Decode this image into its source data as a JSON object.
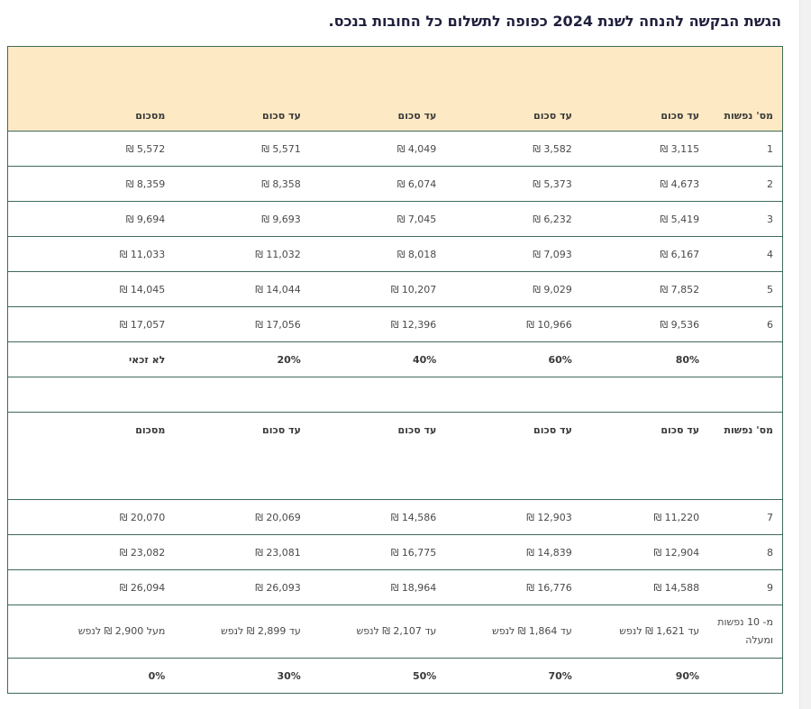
{
  "title": "הגשת הבקשה להנחה לשנת 2024 כפופה לתשלום כל החובות בנכס.",
  "table1": {
    "headers": [
      "מס' נפשות",
      "עד סכום",
      "עד סכום",
      "עד סכום",
      "עד סכום",
      "מסכום"
    ],
    "rows": [
      [
        "1",
        "3,115 ₪",
        "3,582 ₪",
        "4,049 ₪",
        "5,571 ₪",
        "5,572 ₪"
      ],
      [
        "2",
        "4,673 ₪",
        "5,373 ₪",
        "6,074 ₪",
        "8,358 ₪",
        "8,359 ₪"
      ],
      [
        "3",
        "5,419 ₪",
        "6,232 ₪",
        "7,045 ₪",
        "9,693 ₪",
        "9,694 ₪"
      ],
      [
        "4",
        "6,167 ₪",
        "7,093 ₪",
        "8,018 ₪",
        "11,032 ₪",
        "11,033 ₪"
      ],
      [
        "5",
        "7,852 ₪",
        "9,029 ₪",
        "10,207 ₪",
        "14,044 ₪",
        "14,045 ₪"
      ],
      [
        "6",
        "9,536 ₪",
        "10,966 ₪",
        "12,396 ₪",
        "17,056 ₪",
        "17,057 ₪"
      ]
    ],
    "percentages": [
      "",
      "80%",
      "60%",
      "40%",
      "20%",
      "לא זכאי"
    ]
  },
  "table2": {
    "headers": [
      "מס' נפשות",
      "עד סכום",
      "עד סכום",
      "עד סכום",
      "עד סכום",
      "מסכום"
    ],
    "rows": [
      [
        "7",
        "11,220 ₪",
        "12,903 ₪",
        "14,586 ₪",
        "20,069 ₪",
        "20,070 ₪"
      ],
      [
        "8",
        "12,904 ₪",
        "14,839 ₪",
        "16,775 ₪",
        "23,081 ₪",
        "23,082 ₪"
      ],
      [
        "9",
        "14,588 ₪",
        "16,776 ₪",
        "18,964 ₪",
        "26,093 ₪",
        "26,094 ₪"
      ],
      [
        "מ- 10 נפשות ומעלה",
        "עד 1,621 ₪ לנפש",
        "עד 1,864 ₪ לנפש",
        "עד 2,107 ₪ לנפש",
        "עד 2,899 ₪ לנפש",
        "מעל 2,900 ₪ לנפש"
      ]
    ],
    "percentages": [
      "",
      "90%",
      "70%",
      "50%",
      "30%",
      "0%"
    ]
  }
}
